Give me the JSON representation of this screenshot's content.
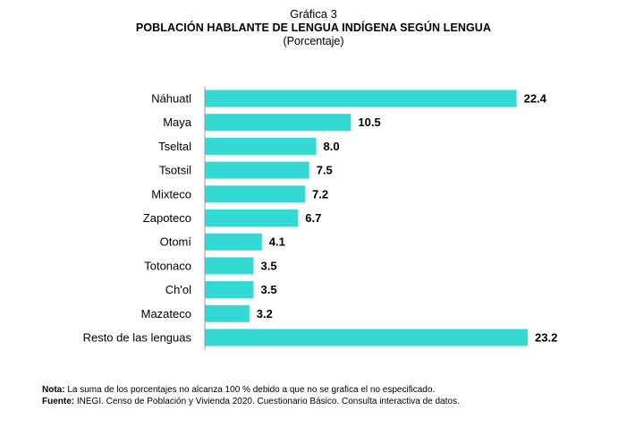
{
  "header": {
    "kicker": "Gráfica 3",
    "title": "POBLACIÓN HABLANTE DE LENGUA INDÍGENA SEGÚN LENGUA",
    "subtitle": "(Porcentaje)"
  },
  "chart_data": {
    "type": "bar",
    "orientation": "horizontal",
    "title": "POBLACIÓN HABLANTE DE LENGUA INDÍGENA SEGÚN LENGUA",
    "subtitle": "(Porcentaje)",
    "categories": [
      "Náhuatl",
      "Maya",
      "Tseltal",
      "Tsotsil",
      "Mixteco",
      "Zapoteco",
      "Otomí",
      "Totonaco",
      "Ch'ol",
      "Mazateco",
      "Resto de las lenguas"
    ],
    "values": [
      22.4,
      10.5,
      8.0,
      7.5,
      7.2,
      6.7,
      4.1,
      3.5,
      3.5,
      3.2,
      23.2
    ],
    "value_labels": [
      "22.4",
      "10.5",
      "8.0",
      "7.5",
      "7.2",
      "6.7",
      "4.1",
      "3.5",
      "3.5",
      "3.2",
      "23.2"
    ],
    "xlim": [
      0,
      23.2
    ],
    "grid": false,
    "legend": "none",
    "bar_color": "#33d9d2"
  },
  "notes": {
    "nota_label": "Nota:",
    "nota_text": "La suma de los porcentajes no alcanza 100 % debido a que no se grafica el no especificado.",
    "fuente_label": "Fuente:",
    "fuente_text": "INEGI. Censo de Población y Vivienda 2020. Cuestionario Básico. Consulta interactiva de datos."
  }
}
